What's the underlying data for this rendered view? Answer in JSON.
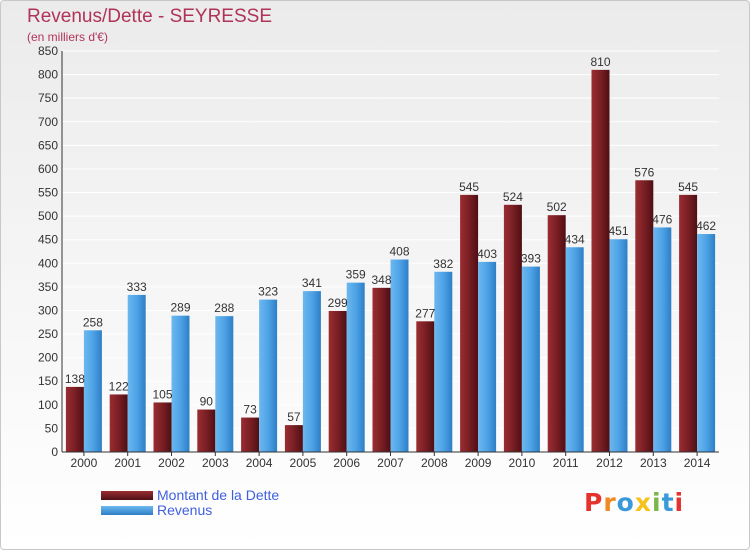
{
  "title": "Revenus/Dette - SEYRESSE",
  "subtitle": "(en milliers d'€)",
  "colors": {
    "title": "#b0335a",
    "dette": "#7a1f24",
    "revenus": "#4ea3e6",
    "legend_text": "#3f5fe0"
  },
  "legend": {
    "dette_label": "Montant de la Dette",
    "revenus_label": "Revenus"
  },
  "logo": {
    "letters": [
      "P",
      "r",
      "o",
      "x",
      "i",
      "t",
      "i"
    ],
    "colors": [
      "#e5322d",
      "#f08a24",
      "#3a9ad9",
      "#f6c21c",
      "#7ab648",
      "#3a9ad9",
      "#e5322d"
    ]
  },
  "chart_data": {
    "type": "bar",
    "title": "Revenus/Dette - SEYRESSE",
    "subtitle": "(en milliers d'€)",
    "categories": [
      "2000",
      "2001",
      "2002",
      "2003",
      "2004",
      "2005",
      "2006",
      "2007",
      "2008",
      "2009",
      "2010",
      "2011",
      "2012",
      "2013",
      "2014"
    ],
    "series": [
      {
        "name": "Montant de la Dette",
        "color": "#7a1f24",
        "values": [
          138,
          122,
          105,
          90,
          73,
          57,
          299,
          348,
          277,
          545,
          524,
          502,
          810,
          576,
          545
        ]
      },
      {
        "name": "Revenus",
        "color": "#4ea3e6",
        "values": [
          258,
          333,
          289,
          288,
          323,
          341,
          359,
          408,
          382,
          403,
          393,
          434,
          451,
          476,
          462
        ]
      }
    ],
    "ylim": [
      0,
      850
    ],
    "ytick_step": 50,
    "grid": true,
    "legend_position": "bottom-left"
  }
}
